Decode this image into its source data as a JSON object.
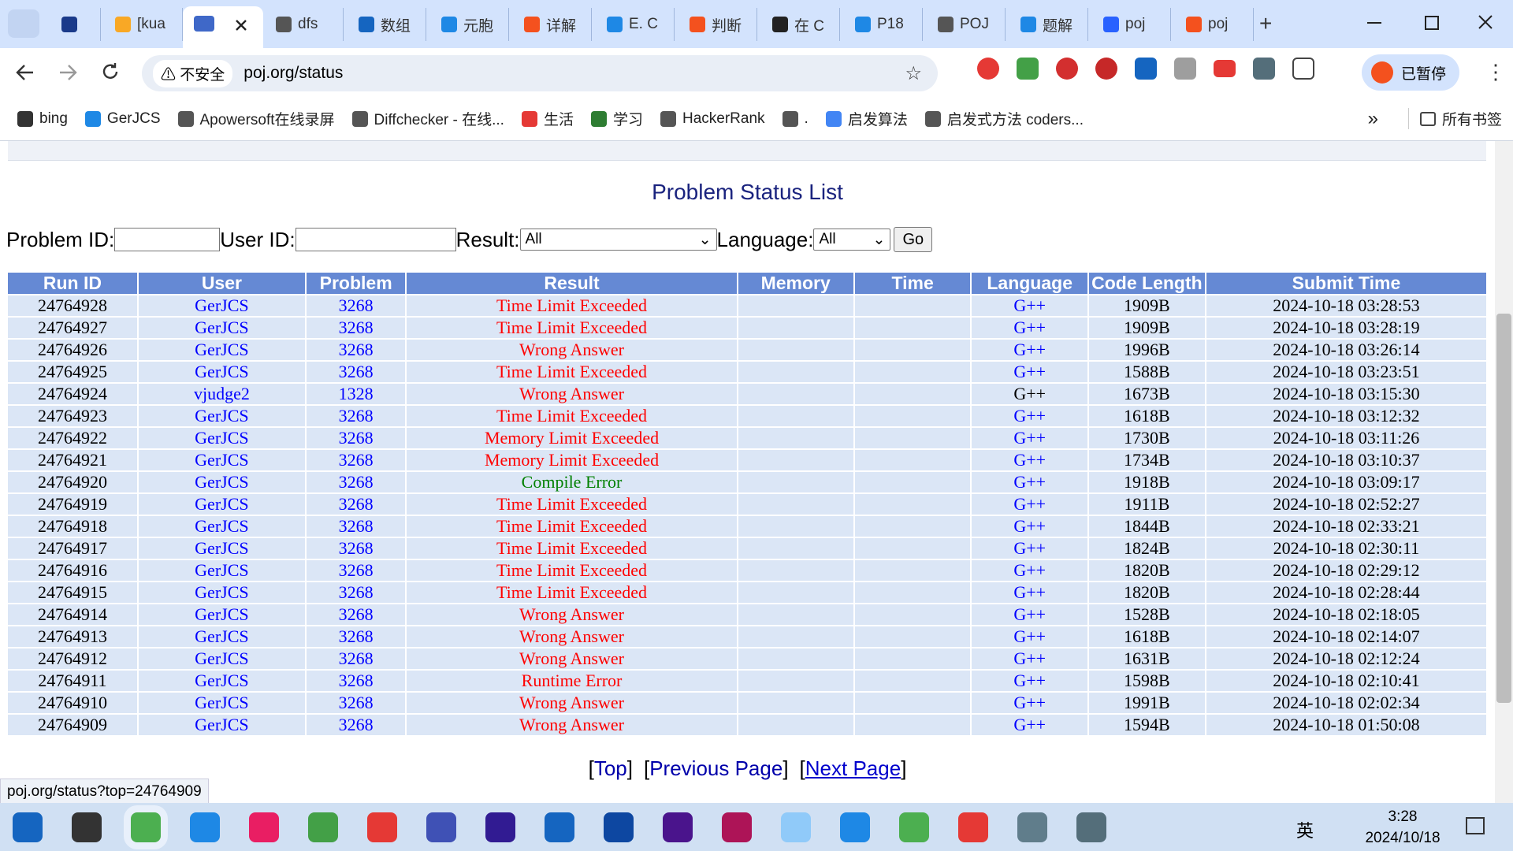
{
  "browser": {
    "tabs": [
      "[kua",
      "dfs",
      "数组",
      "元胞",
      "详解",
      "E. C",
      "判断",
      "在 C",
      "P18",
      "POJ",
      "题解",
      "poj",
      "poj"
    ],
    "security": "不安全",
    "url": "poj.org/status",
    "profile": "已暂停",
    "bookmarks": [
      "bing",
      "GerJCS",
      "Apowersoft在线录屏",
      "Diffchecker - 在线...",
      "生活",
      "学习",
      "HackerRank",
      ".",
      "启发算法",
      "启发式方法 coders..."
    ],
    "all_bookmarks": "所有书签",
    "status_url": "poj.org/status?top=24764909"
  },
  "page": {
    "title": "Problem Status List",
    "form": {
      "problem_id": "Problem ID:",
      "user_id": "User ID:",
      "result": "Result:",
      "result_value": "All",
      "language": "Language:",
      "language_value": "All",
      "go": "Go"
    },
    "table": {
      "headers": [
        "Run ID",
        "User",
        "Problem",
        "Result",
        "Memory",
        "Time",
        "Language",
        "Code Length",
        "Submit Time"
      ],
      "rows": [
        {
          "run_id": "24764928",
          "user": "GerJCS",
          "problem": "3268",
          "result": "Time Limit Exceeded",
          "result_color": "#ff0000",
          "language": "G++",
          "code_length": "1909B",
          "submit_time": "2024-10-18 03:28:53"
        },
        {
          "run_id": "24764927",
          "user": "GerJCS",
          "problem": "3268",
          "result": "Time Limit Exceeded",
          "result_color": "#ff0000",
          "language": "G++",
          "code_length": "1909B",
          "submit_time": "2024-10-18 03:28:19"
        },
        {
          "run_id": "24764926",
          "user": "GerJCS",
          "problem": "3268",
          "result": "Wrong Answer",
          "result_color": "#ff0000",
          "language": "G++",
          "code_length": "1996B",
          "submit_time": "2024-10-18 03:26:14"
        },
        {
          "run_id": "24764925",
          "user": "GerJCS",
          "problem": "3268",
          "result": "Time Limit Exceeded",
          "result_color": "#ff0000",
          "language": "G++",
          "code_length": "1588B",
          "submit_time": "2024-10-18 03:23:51"
        },
        {
          "run_id": "24764924",
          "user": "vjudge2",
          "problem": "1328",
          "result": "Wrong Answer",
          "result_color": "#ff0000",
          "language": "G++",
          "language_color": "#000000",
          "code_length": "1673B",
          "submit_time": "2024-10-18 03:15:30"
        },
        {
          "run_id": "24764923",
          "user": "GerJCS",
          "problem": "3268",
          "result": "Time Limit Exceeded",
          "result_color": "#ff0000",
          "language": "G++",
          "code_length": "1618B",
          "submit_time": "2024-10-18 03:12:32"
        },
        {
          "run_id": "24764922",
          "user": "GerJCS",
          "problem": "3268",
          "result": "Memory Limit Exceeded",
          "result_color": "#ff0000",
          "language": "G++",
          "code_length": "1730B",
          "submit_time": "2024-10-18 03:11:26"
        },
        {
          "run_id": "24764921",
          "user": "GerJCS",
          "problem": "3268",
          "result": "Memory Limit Exceeded",
          "result_color": "#ff0000",
          "language": "G++",
          "code_length": "1734B",
          "submit_time": "2024-10-18 03:10:37"
        },
        {
          "run_id": "24764920",
          "user": "GerJCS",
          "problem": "3268",
          "result": "Compile Error",
          "result_color": "#008000",
          "language": "G++",
          "code_length": "1918B",
          "submit_time": "2024-10-18 03:09:17"
        },
        {
          "run_id": "24764919",
          "user": "GerJCS",
          "problem": "3268",
          "result": "Time Limit Exceeded",
          "result_color": "#ff0000",
          "language": "G++",
          "code_length": "1911B",
          "submit_time": "2024-10-18 02:52:27"
        },
        {
          "run_id": "24764918",
          "user": "GerJCS",
          "problem": "3268",
          "result": "Time Limit Exceeded",
          "result_color": "#ff0000",
          "language": "G++",
          "code_length": "1844B",
          "submit_time": "2024-10-18 02:33:21"
        },
        {
          "run_id": "24764917",
          "user": "GerJCS",
          "problem": "3268",
          "result": "Time Limit Exceeded",
          "result_color": "#ff0000",
          "language": "G++",
          "code_length": "1824B",
          "submit_time": "2024-10-18 02:30:11"
        },
        {
          "run_id": "24764916",
          "user": "GerJCS",
          "problem": "3268",
          "result": "Time Limit Exceeded",
          "result_color": "#ff0000",
          "language": "G++",
          "code_length": "1820B",
          "submit_time": "2024-10-18 02:29:12"
        },
        {
          "run_id": "24764915",
          "user": "GerJCS",
          "problem": "3268",
          "result": "Time Limit Exceeded",
          "result_color": "#ff0000",
          "language": "G++",
          "code_length": "1820B",
          "submit_time": "2024-10-18 02:28:44"
        },
        {
          "run_id": "24764914",
          "user": "GerJCS",
          "problem": "3268",
          "result": "Wrong Answer",
          "result_color": "#ff0000",
          "language": "G++",
          "code_length": "1528B",
          "submit_time": "2024-10-18 02:18:05"
        },
        {
          "run_id": "24764913",
          "user": "GerJCS",
          "problem": "3268",
          "result": "Wrong Answer",
          "result_color": "#ff0000",
          "language": "G++",
          "code_length": "1618B",
          "submit_time": "2024-10-18 02:14:07"
        },
        {
          "run_id": "24764912",
          "user": "GerJCS",
          "problem": "3268",
          "result": "Wrong Answer",
          "result_color": "#ff0000",
          "language": "G++",
          "code_length": "1631B",
          "submit_time": "2024-10-18 02:12:24"
        },
        {
          "run_id": "24764911",
          "user": "GerJCS",
          "problem": "3268",
          "result": "Runtime Error",
          "result_color": "#ff0000",
          "language": "G++",
          "code_length": "1598B",
          "submit_time": "2024-10-18 02:10:41"
        },
        {
          "run_id": "24764910",
          "user": "GerJCS",
          "problem": "3268",
          "result": "Wrong Answer",
          "result_color": "#ff0000",
          "language": "G++",
          "code_length": "1991B",
          "submit_time": "2024-10-18 02:02:34"
        },
        {
          "run_id": "24764909",
          "user": "GerJCS",
          "problem": "3268",
          "result": "Wrong Answer",
          "result_color": "#ff0000",
          "language": "G++",
          "code_length": "1594B",
          "submit_time": "2024-10-18 01:50:08"
        }
      ]
    },
    "footer": {
      "open": "[",
      "close": "]",
      "links": [
        "Top",
        "Previous Page",
        "Next Page"
      ]
    }
  },
  "taskbar": {
    "ime": "英",
    "time": "3:28",
    "date": "2024/10/18"
  }
}
